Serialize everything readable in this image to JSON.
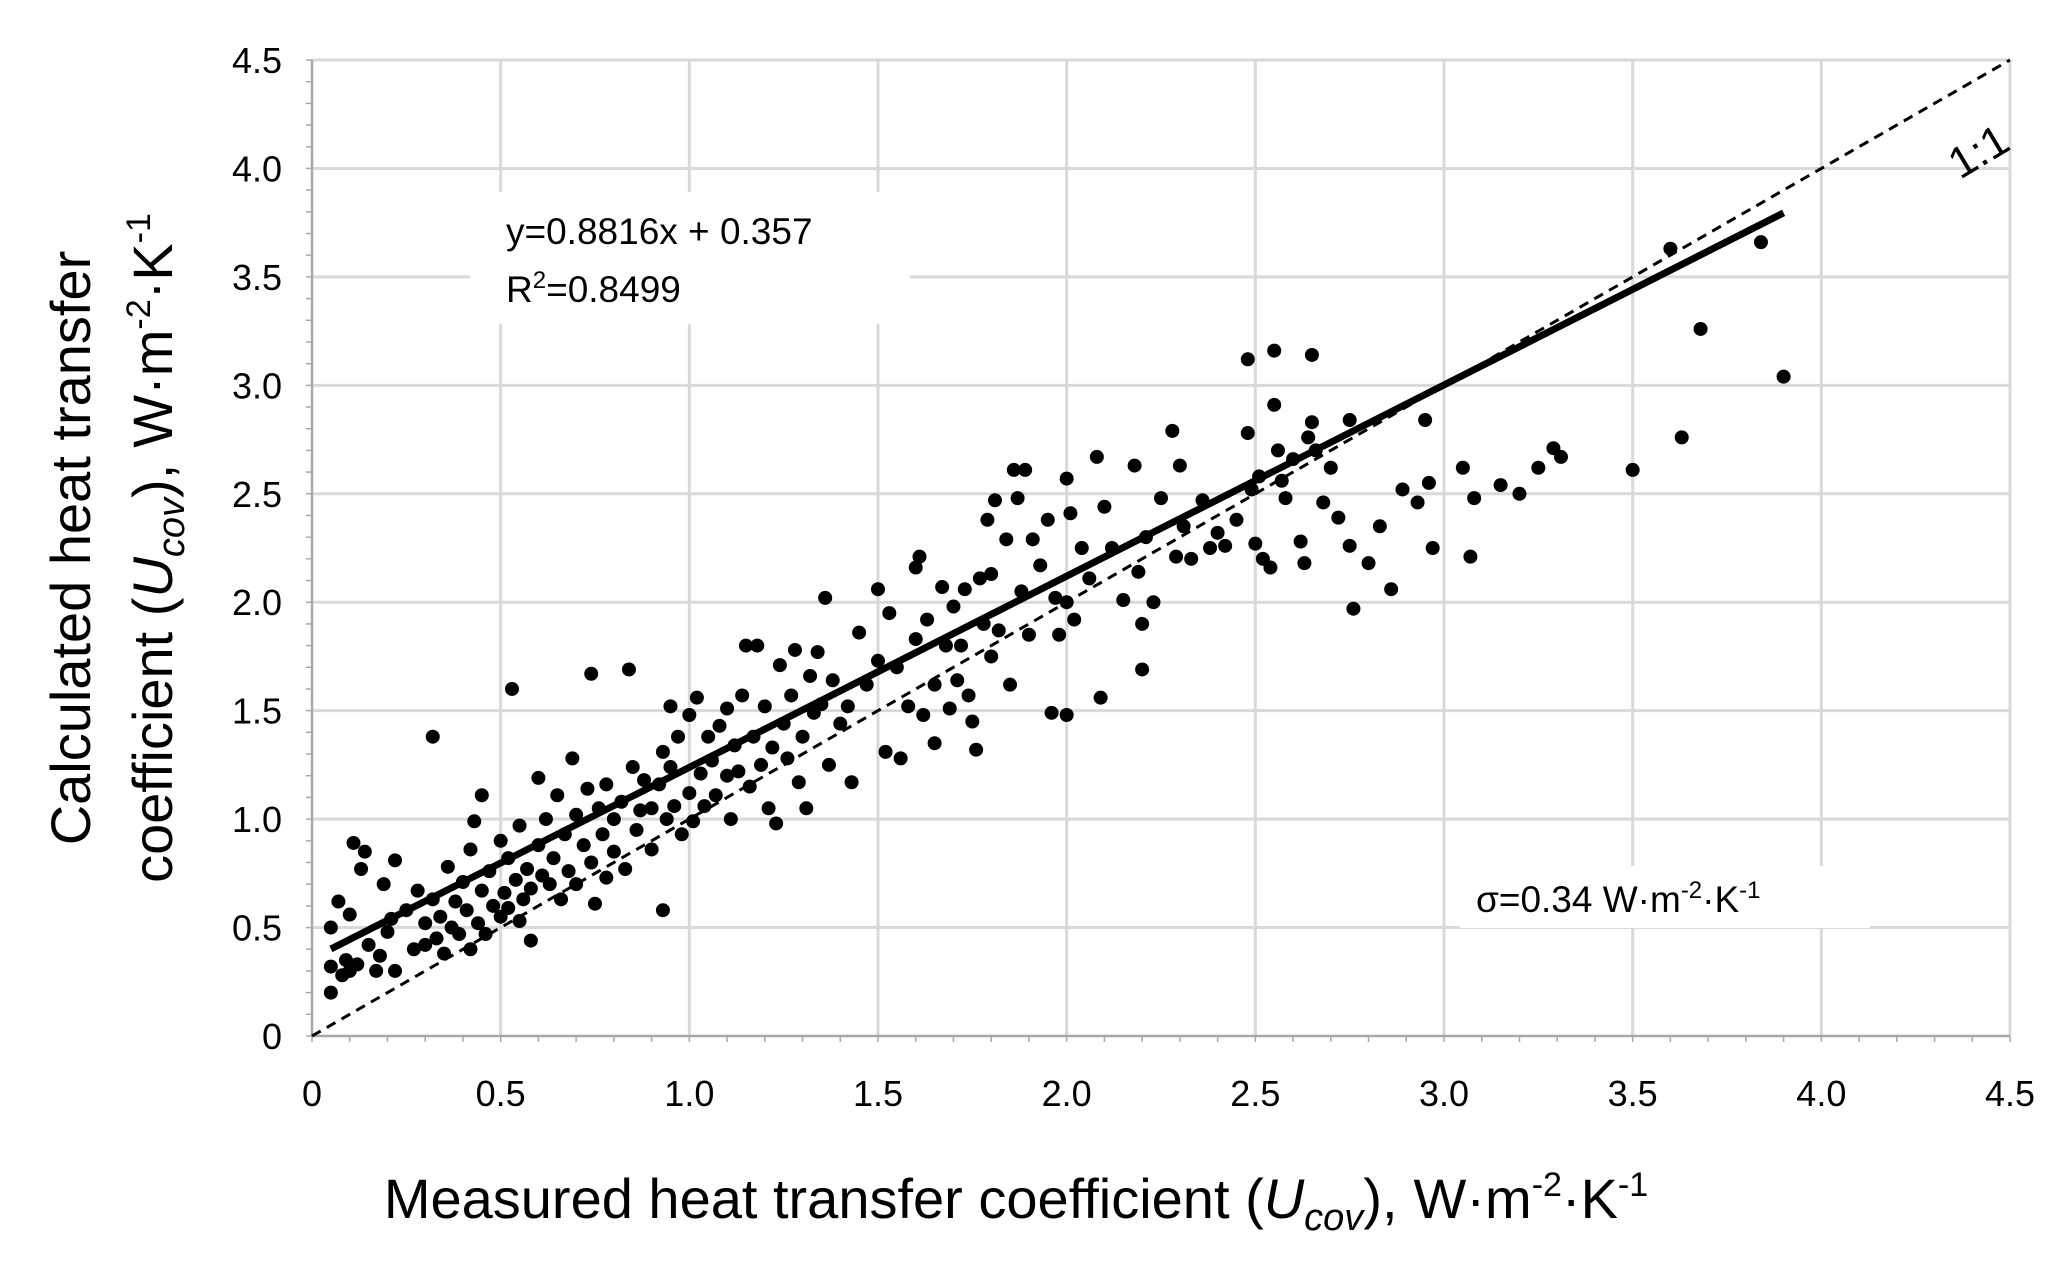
{
  "chart_data": {
    "type": "scatter",
    "title": "",
    "xlabel": {
      "main": "Measured heat transfer coefficient (",
      "var": "U",
      "sub": "cov",
      "close": "),",
      "unit_w": "W·m",
      "exp1": "-2",
      "unit_k": "·K",
      "exp2": "-1"
    },
    "ylabel": {
      "line1": "Calculated heat transfer",
      "line2_main": "coefficient (",
      "var": "U",
      "sub": "cov",
      "close": "),",
      "unit_w": "W·m",
      "exp1": "-2",
      "unit_k": "·K",
      "exp2": "-1"
    },
    "xlim": [
      0,
      4.5
    ],
    "ylim": [
      0,
      4.5
    ],
    "xticks": [
      "0",
      "0.5",
      "1.0",
      "1.5",
      "2.0",
      "2.5",
      "3.0",
      "3.5",
      "4.0",
      "4.5"
    ],
    "yticks": [
      "0",
      "0.5",
      "1.0",
      "1.5",
      "2.0",
      "2.5",
      "3.0",
      "3.5",
      "4.0",
      "4.5"
    ],
    "grid": true,
    "legend": "none",
    "regression": {
      "slope": 0.8816,
      "intercept": 0.357,
      "x_range": [
        0.05,
        3.9
      ],
      "equation_label": "y=0.8816x  + 0.357",
      "r2_prefix": "R",
      "r2_exp": "2",
      "r2_value": "=0.8499"
    },
    "identity_line": {
      "label": "1:1",
      "x_range": [
        0,
        4.5
      ]
    },
    "sigma_annotation": {
      "prefix": "σ=0.34 W·m",
      "exp1": "-2",
      "mid": "·K",
      "exp2": "-1"
    },
    "points": [
      [
        0.05,
        0.2
      ],
      [
        0.05,
        0.32
      ],
      [
        0.05,
        0.5
      ],
      [
        0.07,
        0.62
      ],
      [
        0.08,
        0.28
      ],
      [
        0.09,
        0.35
      ],
      [
        0.1,
        0.56
      ],
      [
        0.1,
        0.3
      ],
      [
        0.11,
        0.89
      ],
      [
        0.12,
        0.33
      ],
      [
        0.13,
        0.77
      ],
      [
        0.14,
        0.85
      ],
      [
        0.15,
        0.42
      ],
      [
        0.17,
        0.3
      ],
      [
        0.18,
        0.37
      ],
      [
        0.19,
        0.7
      ],
      [
        0.2,
        0.48
      ],
      [
        0.21,
        0.54
      ],
      [
        0.22,
        0.81
      ],
      [
        0.22,
        0.3
      ],
      [
        0.25,
        0.58
      ],
      [
        0.27,
        0.4
      ],
      [
        0.28,
        0.67
      ],
      [
        0.3,
        0.52
      ],
      [
        0.3,
        0.42
      ],
      [
        0.32,
        1.38
      ],
      [
        0.32,
        0.63
      ],
      [
        0.33,
        0.45
      ],
      [
        0.34,
        0.55
      ],
      [
        0.35,
        0.38
      ],
      [
        0.36,
        0.78
      ],
      [
        0.37,
        0.5
      ],
      [
        0.38,
        0.62
      ],
      [
        0.39,
        0.47
      ],
      [
        0.4,
        0.71
      ],
      [
        0.41,
        0.58
      ],
      [
        0.42,
        0.4
      ],
      [
        0.42,
        0.86
      ],
      [
        0.43,
        0.99
      ],
      [
        0.44,
        0.52
      ],
      [
        0.45,
        1.11
      ],
      [
        0.45,
        0.67
      ],
      [
        0.46,
        0.47
      ],
      [
        0.47,
        0.76
      ],
      [
        0.48,
        0.6
      ],
      [
        0.5,
        0.55
      ],
      [
        0.5,
        0.9
      ],
      [
        0.51,
        0.66
      ],
      [
        0.52,
        0.82
      ],
      [
        0.52,
        0.59
      ],
      [
        0.53,
        1.6
      ],
      [
        0.54,
        0.72
      ],
      [
        0.55,
        0.53
      ],
      [
        0.55,
        0.97
      ],
      [
        0.56,
        0.63
      ],
      [
        0.57,
        0.77
      ],
      [
        0.58,
        0.44
      ],
      [
        0.58,
        0.68
      ],
      [
        0.6,
        0.88
      ],
      [
        0.6,
        1.19
      ],
      [
        0.61,
        0.74
      ],
      [
        0.62,
        1.0
      ],
      [
        0.63,
        0.7
      ],
      [
        0.64,
        0.82
      ],
      [
        0.65,
        1.11
      ],
      [
        0.66,
        0.63
      ],
      [
        0.67,
        0.93
      ],
      [
        0.68,
        0.76
      ],
      [
        0.69,
        1.28
      ],
      [
        0.7,
        1.02
      ],
      [
        0.7,
        0.7
      ],
      [
        0.72,
        0.88
      ],
      [
        0.73,
        1.14
      ],
      [
        0.74,
        1.67
      ],
      [
        0.74,
        0.8
      ],
      [
        0.75,
        0.61
      ],
      [
        0.76,
        1.05
      ],
      [
        0.77,
        0.93
      ],
      [
        0.78,
        0.73
      ],
      [
        0.78,
        1.16
      ],
      [
        0.8,
        0.85
      ],
      [
        0.8,
        1.0
      ],
      [
        0.82,
        1.08
      ],
      [
        0.83,
        0.77
      ],
      [
        0.84,
        1.69
      ],
      [
        0.85,
        1.24
      ],
      [
        0.86,
        0.95
      ],
      [
        0.87,
        1.04
      ],
      [
        0.88,
        1.18
      ],
      [
        0.9,
        1.05
      ],
      [
        0.9,
        0.86
      ],
      [
        0.92,
        1.16
      ],
      [
        0.93,
        1.31
      ],
      [
        0.93,
        0.58
      ],
      [
        0.94,
        1.0
      ],
      [
        0.95,
        1.52
      ],
      [
        0.95,
        1.24
      ],
      [
        0.96,
        1.06
      ],
      [
        0.97,
        1.38
      ],
      [
        0.98,
        0.93
      ],
      [
        1.0,
        1.12
      ],
      [
        1.0,
        1.48
      ],
      [
        1.01,
        0.99
      ],
      [
        1.02,
        1.56
      ],
      [
        1.03,
        1.21
      ],
      [
        1.04,
        1.06
      ],
      [
        1.05,
        1.38
      ],
      [
        1.06,
        1.27
      ],
      [
        1.07,
        1.11
      ],
      [
        1.08,
        1.43
      ],
      [
        1.1,
        1.2
      ],
      [
        1.1,
        1.51
      ],
      [
        1.11,
        1.0
      ],
      [
        1.12,
        1.34
      ],
      [
        1.13,
        1.22
      ],
      [
        1.14,
        1.57
      ],
      [
        1.15,
        1.8
      ],
      [
        1.16,
        1.15
      ],
      [
        1.17,
        1.38
      ],
      [
        1.18,
        1.8
      ],
      [
        1.19,
        1.25
      ],
      [
        1.2,
        1.52
      ],
      [
        1.21,
        1.05
      ],
      [
        1.22,
        1.33
      ],
      [
        1.23,
        0.98
      ],
      [
        1.24,
        1.71
      ],
      [
        1.25,
        1.44
      ],
      [
        1.26,
        1.28
      ],
      [
        1.27,
        1.57
      ],
      [
        1.28,
        1.78
      ],
      [
        1.29,
        1.17
      ],
      [
        1.3,
        1.38
      ],
      [
        1.31,
        1.05
      ],
      [
        1.32,
        1.66
      ],
      [
        1.33,
        1.49
      ],
      [
        1.34,
        1.77
      ],
      [
        1.35,
        1.53
      ],
      [
        1.36,
        2.02
      ],
      [
        1.37,
        1.25
      ],
      [
        1.38,
        1.64
      ],
      [
        1.4,
        1.44
      ],
      [
        1.42,
        1.52
      ],
      [
        1.43,
        1.17
      ],
      [
        1.45,
        1.86
      ],
      [
        1.47,
        1.62
      ],
      [
        1.5,
        1.73
      ],
      [
        1.5,
        2.06
      ],
      [
        1.52,
        1.31
      ],
      [
        1.53,
        1.95
      ],
      [
        1.55,
        1.7
      ],
      [
        1.56,
        1.28
      ],
      [
        1.58,
        1.52
      ],
      [
        1.6,
        2.16
      ],
      [
        1.6,
        1.83
      ],
      [
        1.61,
        2.21
      ],
      [
        1.62,
        1.48
      ],
      [
        1.63,
        1.92
      ],
      [
        1.65,
        1.62
      ],
      [
        1.65,
        1.35
      ],
      [
        1.67,
        2.07
      ],
      [
        1.68,
        1.8
      ],
      [
        1.69,
        1.51
      ],
      [
        1.7,
        1.98
      ],
      [
        1.71,
        1.64
      ],
      [
        1.72,
        1.8
      ],
      [
        1.73,
        2.06
      ],
      [
        1.74,
        1.57
      ],
      [
        1.75,
        1.45
      ],
      [
        1.76,
        1.32
      ],
      [
        1.77,
        2.11
      ],
      [
        1.78,
        1.9
      ],
      [
        1.79,
        2.38
      ],
      [
        1.8,
        2.13
      ],
      [
        1.8,
        1.75
      ],
      [
        1.81,
        2.47
      ],
      [
        1.82,
        1.87
      ],
      [
        1.84,
        2.29
      ],
      [
        1.85,
        1.62
      ],
      [
        1.86,
        2.61
      ],
      [
        1.87,
        2.48
      ],
      [
        1.88,
        2.05
      ],
      [
        1.89,
        2.61
      ],
      [
        1.9,
        1.85
      ],
      [
        1.91,
        2.29
      ],
      [
        1.93,
        2.17
      ],
      [
        1.95,
        2.38
      ],
      [
        1.96,
        1.49
      ],
      [
        1.97,
        2.02
      ],
      [
        1.98,
        1.85
      ],
      [
        2.0,
        2.57
      ],
      [
        2.0,
        1.48
      ],
      [
        2.0,
        2.0
      ],
      [
        2.01,
        2.41
      ],
      [
        2.02,
        1.92
      ],
      [
        2.04,
        2.25
      ],
      [
        2.06,
        2.11
      ],
      [
        2.08,
        2.67
      ],
      [
        2.09,
        1.56
      ],
      [
        2.1,
        2.44
      ],
      [
        2.12,
        2.25
      ],
      [
        2.15,
        2.01
      ],
      [
        2.18,
        2.63
      ],
      [
        2.19,
        2.14
      ],
      [
        2.2,
        1.9
      ],
      [
        2.2,
        1.69
      ],
      [
        2.21,
        2.3
      ],
      [
        2.23,
        2.0
      ],
      [
        2.25,
        2.48
      ],
      [
        2.28,
        2.79
      ],
      [
        2.29,
        2.21
      ],
      [
        2.3,
        2.63
      ],
      [
        2.31,
        2.35
      ],
      [
        2.33,
        2.2
      ],
      [
        2.36,
        2.47
      ],
      [
        2.38,
        2.25
      ],
      [
        2.4,
        2.32
      ],
      [
        2.42,
        2.26
      ],
      [
        2.45,
        2.38
      ],
      [
        2.48,
        3.12
      ],
      [
        2.48,
        2.78
      ],
      [
        2.49,
        2.52
      ],
      [
        2.5,
        2.27
      ],
      [
        2.51,
        2.58
      ],
      [
        2.52,
        2.2
      ],
      [
        2.54,
        2.16
      ],
      [
        2.55,
        3.16
      ],
      [
        2.55,
        2.91
      ],
      [
        2.56,
        2.7
      ],
      [
        2.57,
        2.56
      ],
      [
        2.58,
        2.48
      ],
      [
        2.6,
        2.66
      ],
      [
        2.62,
        2.28
      ],
      [
        2.63,
        2.18
      ],
      [
        2.64,
        2.76
      ],
      [
        2.65,
        3.14
      ],
      [
        2.65,
        2.83
      ],
      [
        2.66,
        2.7
      ],
      [
        2.68,
        2.46
      ],
      [
        2.7,
        2.62
      ],
      [
        2.72,
        2.39
      ],
      [
        2.75,
        2.84
      ],
      [
        2.75,
        2.26
      ],
      [
        2.76,
        1.97
      ],
      [
        2.8,
        2.18
      ],
      [
        2.83,
        2.35
      ],
      [
        2.86,
        2.06
      ],
      [
        2.89,
        2.52
      ],
      [
        2.93,
        2.46
      ],
      [
        2.95,
        2.84
      ],
      [
        2.96,
        2.55
      ],
      [
        2.97,
        2.25
      ],
      [
        3.05,
        2.62
      ],
      [
        3.07,
        2.21
      ],
      [
        3.08,
        2.48
      ],
      [
        3.15,
        2.54
      ],
      [
        3.2,
        2.5
      ],
      [
        3.25,
        2.62
      ],
      [
        3.29,
        2.71
      ],
      [
        3.31,
        2.67
      ],
      [
        3.5,
        2.61
      ],
      [
        3.6,
        3.63
      ],
      [
        3.63,
        2.76
      ],
      [
        3.68,
        3.26
      ],
      [
        3.84,
        3.66
      ],
      [
        3.9,
        3.04
      ]
    ]
  }
}
